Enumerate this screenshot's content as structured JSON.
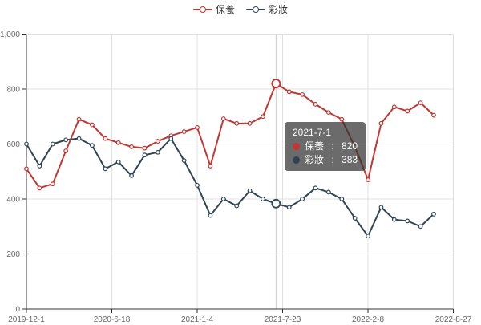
{
  "legend": {
    "items": [
      {
        "label": "保養",
        "color": "#c23531"
      },
      {
        "label": "彩妝",
        "color": "#2f4554"
      }
    ]
  },
  "tooltip": {
    "title": "2021-7-1",
    "separator": " : ",
    "items": [
      {
        "name": "保養",
        "value": "820",
        "color": "#c23531"
      },
      {
        "name": "彩妝",
        "value": "383",
        "color": "#2f4554"
      }
    ]
  },
  "chart_data": {
    "type": "line",
    "title": "",
    "xlabel": "",
    "ylabel": "",
    "categories": [
      "2019-12-1",
      "2020-1-1",
      "2020-2-1",
      "2020-3-1",
      "2020-4-1",
      "2020-5-1",
      "2020-6-1",
      "2020-7-1",
      "2020-8-1",
      "2020-9-1",
      "2020-10-1",
      "2020-11-1",
      "2020-12-1",
      "2021-1-1",
      "2021-2-1",
      "2021-3-1",
      "2021-4-1",
      "2021-5-1",
      "2021-6-1",
      "2021-7-1",
      "2021-8-1",
      "2021-9-1",
      "2021-10-1",
      "2021-11-1",
      "2021-12-1",
      "2022-1-1",
      "2022-2-1",
      "2022-3-1",
      "2022-4-1",
      "2022-5-1",
      "2022-6-1",
      "2022-7-1"
    ],
    "series": [
      {
        "name": "保養",
        "color": "#c23531",
        "values": [
          510,
          440,
          455,
          575,
          690,
          670,
          620,
          605,
          590,
          585,
          610,
          630,
          645,
          660,
          520,
          692,
          675,
          675,
          700,
          820,
          790,
          780,
          745,
          715,
          690,
          590,
          470,
          675,
          735,
          720,
          750,
          705
        ]
      },
      {
        "name": "彩妝",
        "color": "#2f4554",
        "values": [
          600,
          520,
          600,
          615,
          620,
          595,
          510,
          535,
          485,
          560,
          570,
          620,
          540,
          450,
          340,
          400,
          375,
          430,
          400,
          383,
          370,
          400,
          440,
          425,
          400,
          330,
          265,
          370,
          325,
          320,
          300,
          345
        ]
      }
    ],
    "hover_index": 19,
    "ylim": [
      0,
      1000
    ],
    "ytick_labels": [
      "0",
      "200",
      "400",
      "600",
      "800",
      "1,000"
    ],
    "ytick_values": [
      0,
      200,
      400,
      600,
      800,
      1000
    ],
    "xtick_labels": [
      "2019-12-1",
      "2020-6-18",
      "2021-1-4",
      "2021-7-23",
      "2022-2-8",
      "2022-8-27"
    ],
    "grid": true,
    "legend_position": "top-center",
    "colors": {
      "axis_line": "#333333",
      "axis_label": "#666666",
      "grid_line": "#e0e0e0",
      "axis_pointer": "#cccccc",
      "background": "#ffffff"
    }
  }
}
